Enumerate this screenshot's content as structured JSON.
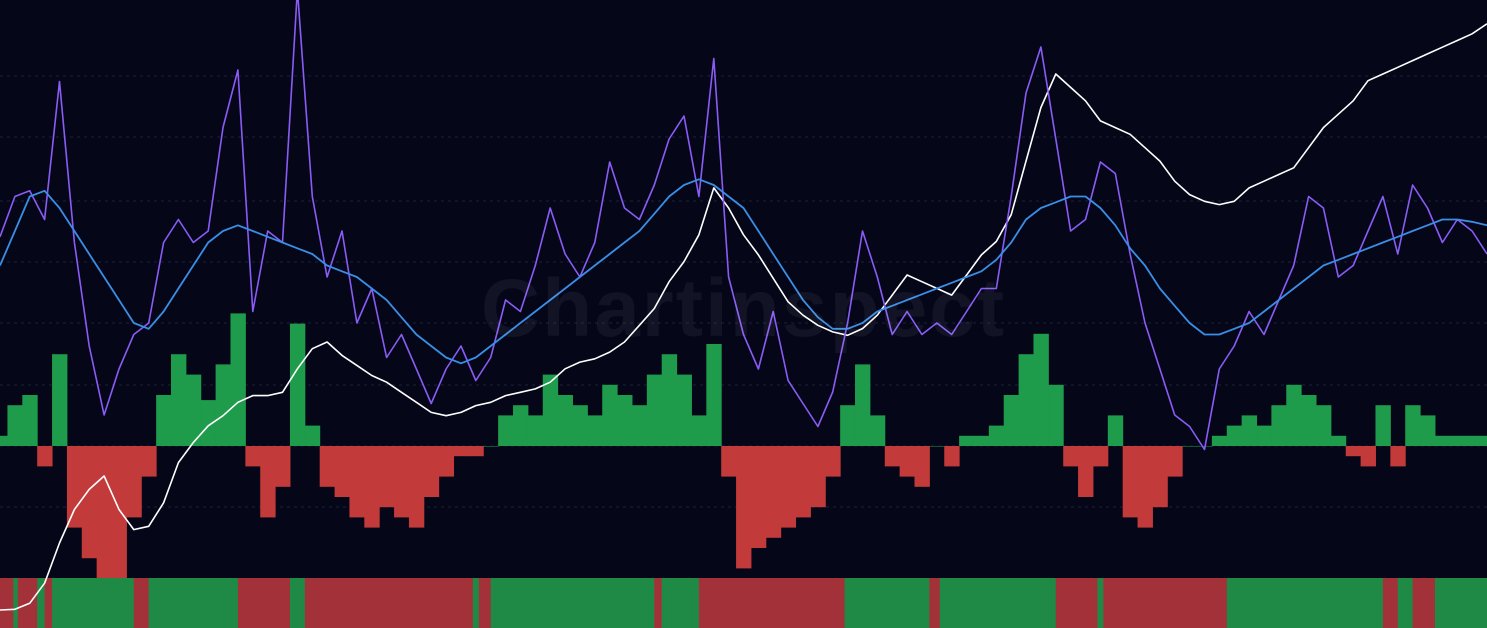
{
  "watermark": "Chartinspect",
  "colors": {
    "background": "#050719",
    "grid": "#1b2036",
    "price": "#ffffff",
    "oscillator": "#8a5cf6",
    "moving_average": "#3a8ee6",
    "positive": "#1e9b4b",
    "negative": "#c23a3a",
    "strip_positive": "#1e8a45",
    "strip_negative": "#a3313a"
  },
  "chart_data": {
    "type": "line",
    "title": "",
    "xlabel": "",
    "ylabel": "",
    "grid": true,
    "legend": "none",
    "x": [
      0,
      10,
      20,
      30,
      40,
      50,
      60,
      70,
      80,
      90,
      100,
      110,
      120,
      130,
      140,
      150,
      160,
      170,
      180,
      190,
      200,
      210,
      220,
      230,
      240,
      250,
      260,
      270,
      280,
      290,
      300,
      310,
      320,
      330,
      340,
      350,
      360,
      370,
      380,
      390,
      400,
      410,
      420,
      430,
      440,
      450,
      460,
      470,
      480,
      490,
      500,
      510,
      520,
      530,
      540,
      550,
      560,
      570,
      580,
      590,
      600,
      610,
      620,
      630,
      640,
      650,
      660,
      670,
      680,
      690,
      700,
      710,
      720,
      730,
      740,
      750,
      760,
      770,
      780,
      790,
      800,
      810,
      820,
      830,
      840,
      850,
      860,
      870,
      880,
      890,
      900,
      910,
      920,
      930,
      940,
      950,
      960,
      970,
      980,
      990,
      1000
    ],
    "series": [
      {
        "role": "price",
        "values": [
          0.0,
          0.2,
          2.0,
          8.0,
          20.0,
          30.0,
          36.0,
          40.0,
          30.0,
          24.0,
          25.0,
          32.0,
          44.0,
          50.0,
          55.0,
          58.0,
          62.0,
          64.0,
          64.0,
          65.0,
          72.0,
          78.0,
          80.0,
          76.0,
          73.0,
          70.0,
          68.0,
          65.0,
          62.0,
          59.0,
          58.0,
          59.0,
          61.0,
          62.0,
          64.0,
          65.0,
          66.0,
          68.0,
          72.0,
          74.0,
          75.0,
          77.0,
          80.0,
          85.0,
          90.0,
          98.0,
          104.0,
          112.0,
          126.0,
          120.0,
          112.0,
          106.0,
          99.0,
          92.0,
          88.0,
          85.0,
          83.0,
          82.0,
          84.0,
          88.0,
          94.0,
          100.0,
          98.0,
          96.0,
          94.0,
          100.0,
          106.0,
          110.0,
          118.0,
          134.0,
          150.0,
          160.0,
          156.0,
          152.0,
          146.0,
          144.0,
          142.0,
          138.0,
          134.0,
          128.0,
          124.0,
          122.0,
          121.0,
          122.0,
          126.0,
          128.0,
          130.0,
          132.0,
          138.0,
          144.0,
          148.0,
          152.0,
          158.0,
          160.0,
          162.0,
          164.0,
          166.0,
          168.0,
          170.0,
          172.0,
          175.0
        ]
      },
      {
        "role": "oscillator",
        "values": [
          0.55,
          0.9,
          0.95,
          0.7,
          1.9,
          0.5,
          -0.4,
          -1.0,
          -0.6,
          -0.3,
          -0.2,
          0.5,
          0.7,
          0.5,
          0.6,
          1.5,
          2.0,
          -0.1,
          0.6,
          0.5,
          2.7,
          0.9,
          0.2,
          0.6,
          -0.2,
          0.1,
          -0.5,
          -0.3,
          -0.6,
          -0.9,
          -0.6,
          -0.4,
          -0.7,
          -0.5,
          0.0,
          -0.1,
          0.3,
          0.8,
          0.4,
          0.2,
          0.5,
          1.2,
          0.8,
          0.7,
          1.0,
          1.4,
          1.6,
          0.9,
          2.1,
          0.2,
          -0.3,
          -0.6,
          -0.1,
          -0.7,
          -0.9,
          -1.1,
          -0.8,
          -0.2,
          0.6,
          0.2,
          -0.3,
          -0.1,
          -0.3,
          -0.2,
          -0.3,
          -0.1,
          0.1,
          0.1,
          0.9,
          1.8,
          2.2,
          1.4,
          0.6,
          0.7,
          1.2,
          1.1,
          0.4,
          -0.2,
          -0.6,
          -1.0,
          -1.1,
          -1.3,
          -0.6,
          -0.4,
          -0.1,
          -0.3,
          0.0,
          0.3,
          0.9,
          0.8,
          0.2,
          0.3,
          0.6,
          0.9,
          0.4,
          1.0,
          0.8,
          0.5,
          0.7,
          0.6,
          0.4
        ]
      },
      {
        "role": "moving_average",
        "values": [
          0.3,
          0.6,
          0.9,
          0.95,
          0.8,
          0.6,
          0.4,
          0.2,
          0.0,
          -0.2,
          -0.25,
          -0.1,
          0.1,
          0.3,
          0.5,
          0.6,
          0.65,
          0.6,
          0.55,
          0.5,
          0.45,
          0.4,
          0.3,
          0.25,
          0.2,
          0.1,
          0.0,
          -0.15,
          -0.3,
          -0.4,
          -0.5,
          -0.55,
          -0.5,
          -0.4,
          -0.3,
          -0.2,
          -0.1,
          0.0,
          0.1,
          0.2,
          0.3,
          0.4,
          0.5,
          0.6,
          0.75,
          0.9,
          1.0,
          1.05,
          1.0,
          0.9,
          0.8,
          0.6,
          0.4,
          0.2,
          0.0,
          -0.15,
          -0.25,
          -0.25,
          -0.2,
          -0.1,
          -0.05,
          0.0,
          0.05,
          0.1,
          0.15,
          0.2,
          0.25,
          0.35,
          0.5,
          0.7,
          0.8,
          0.85,
          0.9,
          0.9,
          0.8,
          0.65,
          0.45,
          0.3,
          0.1,
          -0.05,
          -0.2,
          -0.3,
          -0.3,
          -0.25,
          -0.2,
          -0.1,
          0.0,
          0.1,
          0.2,
          0.3,
          0.35,
          0.4,
          0.45,
          0.5,
          0.55,
          0.6,
          0.65,
          0.7,
          0.7,
          0.68,
          0.65
        ]
      },
      {
        "role": "histogram",
        "values": [
          0.1,
          0.4,
          0.5,
          -0.2,
          0.9,
          -0.8,
          -1.1,
          -1.5,
          -1.4,
          -0.7,
          -0.3,
          0.5,
          0.9,
          0.7,
          0.45,
          0.8,
          1.3,
          -0.2,
          -0.7,
          -0.4,
          1.2,
          0.2,
          -0.4,
          -0.5,
          -0.7,
          -0.8,
          -0.6,
          -0.7,
          -0.8,
          -0.5,
          -0.3,
          -0.1,
          -0.1,
          0.0,
          0.3,
          0.4,
          0.3,
          0.7,
          0.5,
          0.4,
          0.3,
          0.6,
          0.5,
          0.4,
          0.7,
          0.9,
          0.7,
          0.3,
          1.0,
          -0.3,
          -1.2,
          -1.0,
          -0.9,
          -0.8,
          -0.7,
          -0.6,
          -0.3,
          0.4,
          0.8,
          0.3,
          -0.2,
          -0.3,
          -0.4,
          0.0,
          -0.2,
          0.1,
          0.1,
          0.2,
          0.5,
          0.9,
          1.1,
          0.6,
          -0.2,
          -0.5,
          -0.2,
          0.3,
          -0.7,
          -0.8,
          -0.6,
          -0.3,
          0.0,
          0.0,
          0.1,
          0.2,
          0.3,
          0.2,
          0.4,
          0.6,
          0.5,
          0.4,
          0.1,
          -0.1,
          -0.2,
          0.4,
          -0.2,
          0.4,
          0.3,
          0.1,
          0.1,
          0.1,
          0.1
        ]
      }
    ],
    "signal_strip": [
      {
        "start": 0,
        "end": 9,
        "state": "negative"
      },
      {
        "start": 9,
        "end": 12,
        "state": "positive"
      },
      {
        "start": 12,
        "end": 25,
        "state": "negative"
      },
      {
        "start": 25,
        "end": 30,
        "state": "positive"
      },
      {
        "start": 30,
        "end": 35,
        "state": "negative"
      },
      {
        "start": 35,
        "end": 90,
        "state": "positive"
      },
      {
        "start": 90,
        "end": 100,
        "state": "negative"
      },
      {
        "start": 100,
        "end": 160,
        "state": "positive"
      },
      {
        "start": 160,
        "end": 195,
        "state": "negative"
      },
      {
        "start": 195,
        "end": 205,
        "state": "positive"
      },
      {
        "start": 205,
        "end": 215,
        "state": "negative"
      },
      {
        "start": 215,
        "end": 300,
        "state": "negative"
      },
      {
        "start": 300,
        "end": 318,
        "state": "negative"
      },
      {
        "start": 318,
        "end": 322,
        "state": "positive"
      },
      {
        "start": 322,
        "end": 330,
        "state": "negative"
      },
      {
        "start": 330,
        "end": 420,
        "state": "positive"
      },
      {
        "start": 420,
        "end": 440,
        "state": "positive"
      },
      {
        "start": 440,
        "end": 445,
        "state": "negative"
      },
      {
        "start": 445,
        "end": 470,
        "state": "positive"
      },
      {
        "start": 470,
        "end": 485,
        "state": "negative"
      },
      {
        "start": 485,
        "end": 568,
        "state": "negative"
      },
      {
        "start": 568,
        "end": 625,
        "state": "positive"
      },
      {
        "start": 625,
        "end": 632,
        "state": "negative"
      },
      {
        "start": 632,
        "end": 642,
        "state": "positive"
      },
      {
        "start": 642,
        "end": 710,
        "state": "positive"
      },
      {
        "start": 710,
        "end": 738,
        "state": "negative"
      },
      {
        "start": 738,
        "end": 742,
        "state": "positive"
      },
      {
        "start": 742,
        "end": 825,
        "state": "negative"
      },
      {
        "start": 825,
        "end": 930,
        "state": "positive"
      },
      {
        "start": 930,
        "end": 940,
        "state": "negative"
      },
      {
        "start": 940,
        "end": 950,
        "state": "positive"
      },
      {
        "start": 950,
        "end": 965,
        "state": "negative"
      },
      {
        "start": 965,
        "end": 980,
        "state": "positive"
      },
      {
        "start": 980,
        "end": 1000,
        "state": "positive"
      }
    ]
  }
}
